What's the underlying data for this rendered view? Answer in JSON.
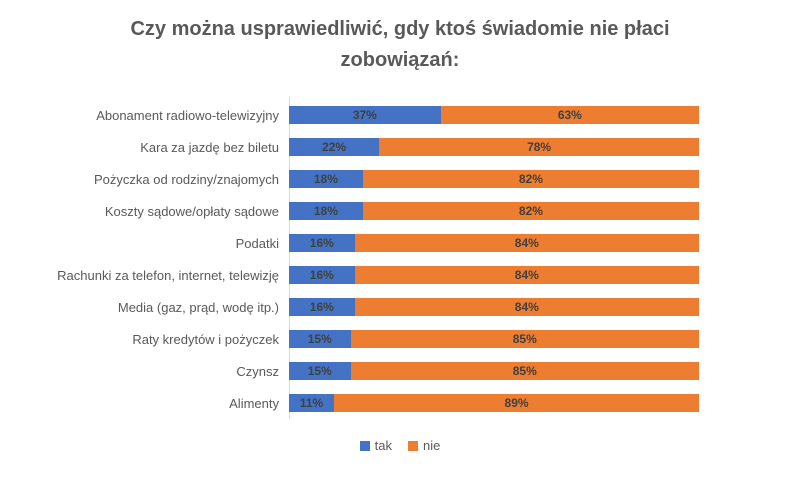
{
  "chart_data": {
    "type": "bar",
    "orientation": "horizontal",
    "stacked": true,
    "title": "Czy można usprawiedliwić, gdy ktoś świadomie nie płaci zobowiązań:",
    "categories": [
      "Abonament radiowo-telewizyjny",
      "Kara za jazdę bez biletu",
      "Pożyczka od rodziny/znajomych",
      "Koszty sądowe/opłaty sądowe",
      "Podatki",
      "Rachunki za telefon, internet, telewizję",
      "Media (gaz, prąd, wodę itp.)",
      "Raty kredytów i pożyczek",
      "Czynsz",
      "Alimenty"
    ],
    "series": [
      {
        "name": "tak",
        "color": "#4472C4",
        "values": [
          37,
          22,
          18,
          18,
          16,
          16,
          16,
          15,
          15,
          11
        ]
      },
      {
        "name": "nie",
        "color": "#ED7D31",
        "values": [
          63,
          78,
          82,
          82,
          84,
          84,
          84,
          85,
          85,
          89
        ]
      }
    ],
    "value_format": "percent",
    "xlim": [
      0,
      100
    ],
    "grid": false,
    "legend_position": "bottom"
  },
  "colors": {
    "title_text": "#595959",
    "category_text": "#595959",
    "data_label_text": "#404040",
    "axis_line": "#d9d9d9"
  }
}
